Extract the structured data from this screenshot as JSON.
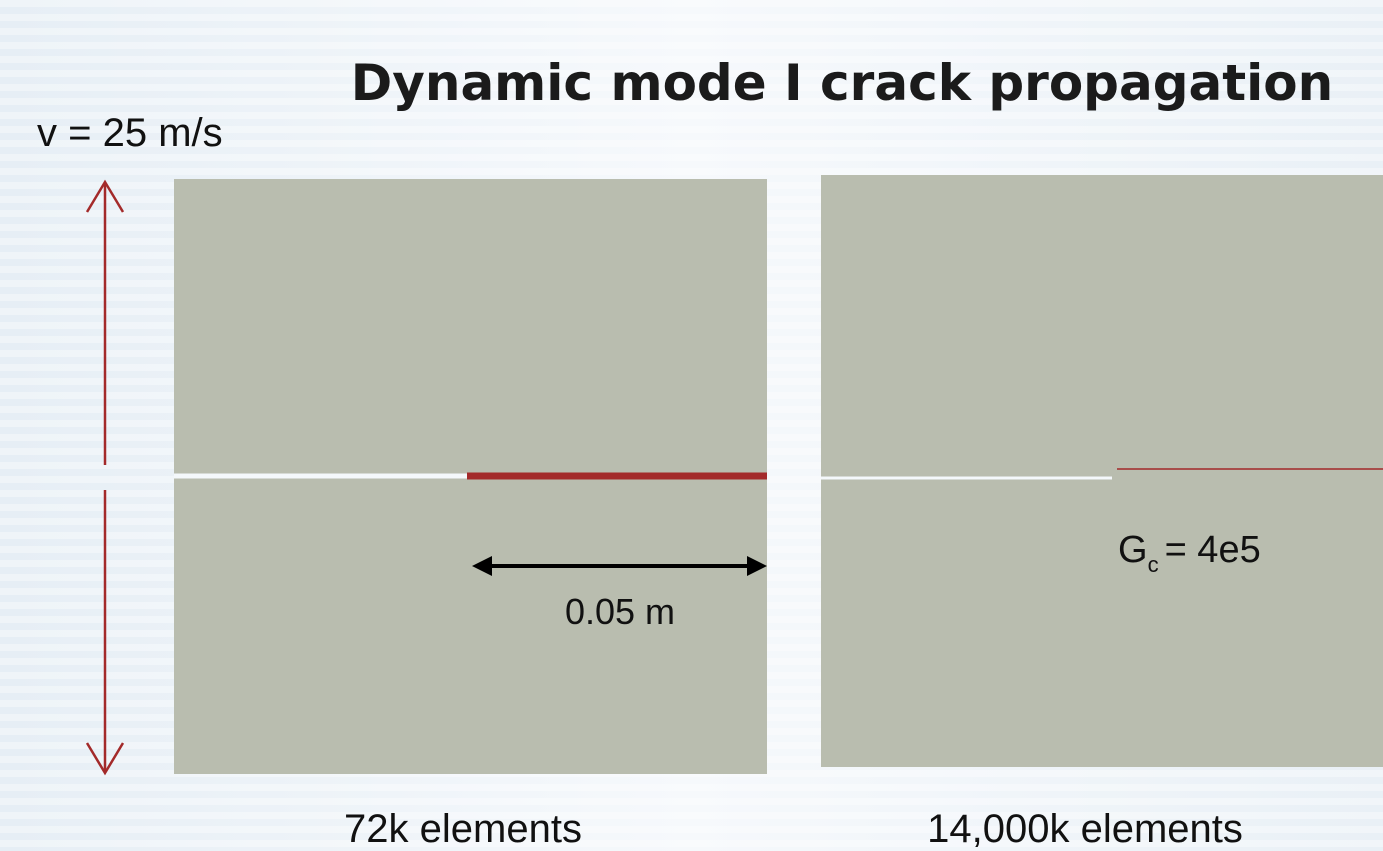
{
  "slide": {
    "title": "Dynamic mode I crack propagation",
    "velocity": "v = 25 m/s",
    "length": "0.05 m",
    "gc": {
      "symbol": "G",
      "subscript": "c",
      "value": "= 4e5"
    },
    "left_caption": "72k elements",
    "right_caption": "14,000k elements"
  }
}
